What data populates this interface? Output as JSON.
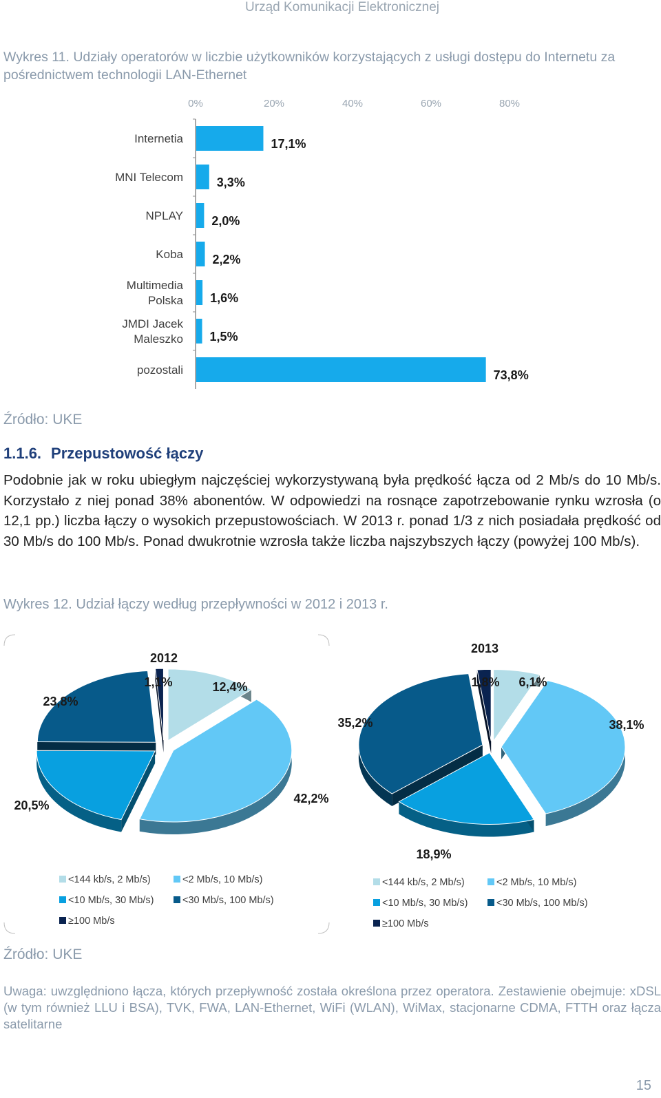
{
  "header": {
    "title": "Urząd Komunikacji Elektronicznej"
  },
  "figure11": {
    "caption": "Wykres 11. Udziały operatorów w liczbie użytkowników korzystających z usługi dostępu do Internetu za pośrednictwem technologii LAN-Ethernet",
    "source": "Źródło: UKE"
  },
  "section": {
    "number": "1.1.6.",
    "title": "Przepustowość łączy",
    "paragraph": "Podobnie jak w roku ubiegłym najczęściej wykorzystywaną była prędkość łącza od 2 Mb/s do 10 Mb/s. Korzystało z niej ponad 38% abonentów. W odpowiedzi na rosnące zapotrzebowanie rynku wzrosła (o 12,1 pp.) liczba łączy o wysokich przepustowościach. W 2013 r. ponad 1/3 z nich posiadała prędkość od 30 Mb/s do 100 Mb/s. Ponad dwukrotnie wzrosła także liczba najszybszych łączy (powyżej 100 Mb/s)."
  },
  "figure12": {
    "caption": "Wykres 12. Udział łączy według przepływności w 2012 i 2013 r.",
    "source": "Źródło: UKE"
  },
  "note": "Uwaga: uwzględniono łącza, których przepływność została określona przez operatora. Zestawienie obejmuje: xDSL (w tym również LLU i BSA), TVK, FWA, LAN-Ethernet, WiFi (WLAN), WiMax, stacjonarne CDMA, FTTH oraz łącza satelitarne",
  "page_number": "15",
  "chart_data": [
    {
      "type": "bar",
      "orientation": "horizontal",
      "categories": [
        "Internetia",
        "MNI Telecom",
        "NPLAY",
        "Koba",
        "Multimedia Polska",
        "JMDI Jacek Maleszko",
        "pozostali"
      ],
      "category_lines": [
        [
          "Internetia"
        ],
        [
          "MNI Telecom"
        ],
        [
          "NPLAY"
        ],
        [
          "Koba"
        ],
        [
          "Multimedia",
          "Polska"
        ],
        [
          "JMDI Jacek",
          "Maleszko"
        ],
        [
          "pozostali"
        ]
      ],
      "values": [
        17.1,
        3.3,
        2.0,
        2.2,
        1.6,
        1.5,
        73.8
      ],
      "labels": [
        "17,1%",
        "3,3%",
        "2,0%",
        "2,2%",
        "1,6%",
        "1,5%",
        "73,8%"
      ],
      "xticks": [
        "0%",
        "20%",
        "40%",
        "60%",
        "80%"
      ],
      "xlim": [
        0,
        80
      ],
      "axis_position": "top",
      "color": "#16aaeb"
    },
    {
      "type": "pie",
      "title": "2012",
      "categories": [
        "<144 kb/s, 2 Mb/s)",
        "<2 Mb/s, 10 Mb/s)",
        "<10 Mb/s, 30 Mb/s)",
        "<30 Mb/s, 100 Mb/s)",
        "≥100 Mb/s"
      ],
      "values": [
        12.4,
        42.2,
        20.5,
        23.8,
        1.1
      ],
      "labels": [
        "12,4%",
        "42,2%",
        "20,5%",
        "23,8%",
        "1,1%"
      ],
      "colors": [
        "#b3dde8",
        "#62c8f6",
        "#08a0e0",
        "#075a8a",
        "#0a2350"
      ],
      "legend": "bottom"
    },
    {
      "type": "pie",
      "title": "2013",
      "categories": [
        "<144 kb/s, 2 Mb/s)",
        "<2 Mb/s, 10 Mb/s)",
        "<10 Mb/s, 30 Mb/s)",
        "<30 Mb/s, 100 Mb/s)",
        "≥100 Mb/s"
      ],
      "values": [
        6.1,
        38.1,
        18.9,
        35.2,
        1.8
      ],
      "labels": [
        "6,1%",
        "38,1%",
        "18,9%",
        "35,2%",
        "1,8%"
      ],
      "colors": [
        "#b3dde8",
        "#62c8f6",
        "#08a0e0",
        "#075a8a",
        "#0a2350"
      ],
      "legend": "bottom"
    }
  ]
}
